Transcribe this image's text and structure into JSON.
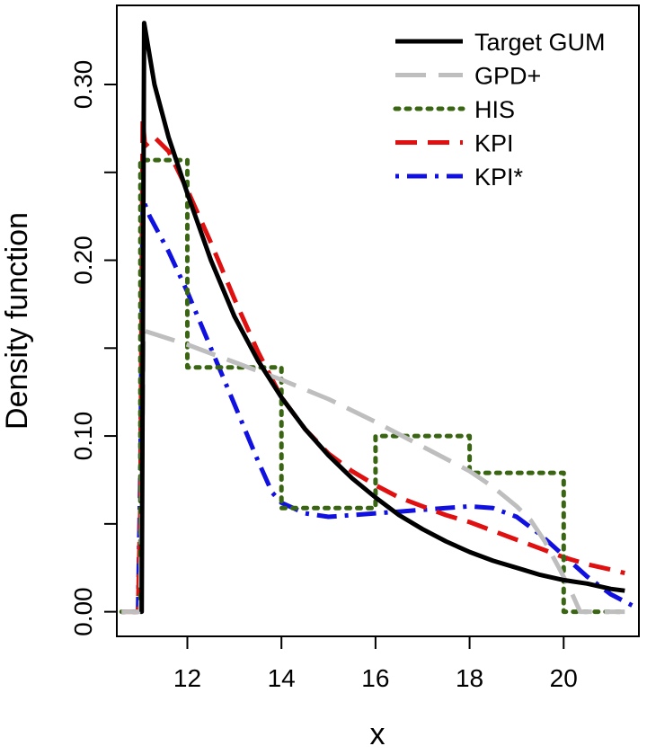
{
  "chart_data": {
    "type": "line",
    "title": "",
    "xlabel": "x",
    "ylabel": "Density function",
    "xlim": [
      10.5,
      21.6
    ],
    "ylim": [
      -0.014,
      0.345
    ],
    "xticks": [
      12,
      14,
      16,
      18,
      20
    ],
    "xtick_labels": [
      "12",
      "14",
      "16",
      "18",
      "20"
    ],
    "yticks": [
      0.0,
      0.05,
      0.1,
      0.15,
      0.2,
      0.25,
      0.3
    ],
    "ytick_labels": [
      "0.00",
      "",
      "0.10",
      "",
      "0.20",
      "",
      "0.30"
    ],
    "grid": false,
    "legend_position": "top-right",
    "series": [
      {
        "name": "Target GUM",
        "color": "#000000",
        "style": "solid",
        "points": [
          [
            11.0,
            0.0
          ],
          [
            11.03,
            0.0
          ],
          [
            11.08,
            0.335
          ],
          [
            11.3,
            0.3
          ],
          [
            11.6,
            0.27
          ],
          [
            12.0,
            0.238
          ],
          [
            12.5,
            0.2
          ],
          [
            13.0,
            0.168
          ],
          [
            13.5,
            0.143
          ],
          [
            14.0,
            0.122
          ],
          [
            14.5,
            0.104
          ],
          [
            15.0,
            0.089
          ],
          [
            15.5,
            0.076
          ],
          [
            16.0,
            0.065
          ],
          [
            16.5,
            0.055
          ],
          [
            17.0,
            0.047
          ],
          [
            17.5,
            0.04
          ],
          [
            18.0,
            0.034
          ],
          [
            18.5,
            0.029
          ],
          [
            19.0,
            0.025
          ],
          [
            19.5,
            0.021
          ],
          [
            20.0,
            0.018
          ],
          [
            20.5,
            0.016
          ],
          [
            21.0,
            0.013
          ],
          [
            21.3,
            0.012
          ]
        ]
      },
      {
        "name": "GPD+",
        "color": "#bebebe",
        "style": "longdash",
        "points": [
          [
            10.6,
            0.0
          ],
          [
            11.0,
            0.0
          ],
          [
            11.07,
            0.16
          ],
          [
            12.0,
            0.152
          ],
          [
            13.0,
            0.142
          ],
          [
            14.0,
            0.132
          ],
          [
            15.0,
            0.121
          ],
          [
            16.0,
            0.108
          ],
          [
            17.0,
            0.094
          ],
          [
            18.0,
            0.08
          ],
          [
            18.5,
            0.071
          ],
          [
            19.0,
            0.06
          ],
          [
            19.3,
            0.052
          ],
          [
            19.6,
            0.04
          ],
          [
            19.9,
            0.025
          ],
          [
            20.15,
            0.012
          ],
          [
            20.35,
            0.0
          ],
          [
            21.3,
            0.0
          ]
        ]
      },
      {
        "name": "HIS",
        "color": "#3a6614",
        "style": "dotted",
        "points": [
          [
            10.6,
            0.0
          ],
          [
            11.0,
            0.0
          ],
          [
            11.0,
            0.257
          ],
          [
            12.0,
            0.257
          ],
          [
            12.0,
            0.139
          ],
          [
            14.0,
            0.139
          ],
          [
            14.0,
            0.059
          ],
          [
            16.0,
            0.059
          ],
          [
            16.0,
            0.1
          ],
          [
            18.0,
            0.1
          ],
          [
            18.0,
            0.079
          ],
          [
            20.0,
            0.079
          ],
          [
            20.0,
            0.0
          ],
          [
            21.3,
            0.0
          ]
        ]
      },
      {
        "name": "KPI",
        "color": "#e01010",
        "style": "dashed",
        "points": [
          [
            10.6,
            0.0
          ],
          [
            10.95,
            0.0
          ],
          [
            11.0,
            0.06
          ],
          [
            11.05,
            0.28
          ],
          [
            11.1,
            0.265
          ],
          [
            11.3,
            0.27
          ],
          [
            11.6,
            0.262
          ],
          [
            12.0,
            0.24
          ],
          [
            12.5,
            0.21
          ],
          [
            13.0,
            0.178
          ],
          [
            13.5,
            0.148
          ],
          [
            14.0,
            0.122
          ],
          [
            14.5,
            0.104
          ],
          [
            15.0,
            0.09
          ],
          [
            15.5,
            0.08
          ],
          [
            16.0,
            0.072
          ],
          [
            16.5,
            0.065
          ],
          [
            17.0,
            0.06
          ],
          [
            17.5,
            0.055
          ],
          [
            18.0,
            0.051
          ],
          [
            18.5,
            0.046
          ],
          [
            19.0,
            0.041
          ],
          [
            19.5,
            0.036
          ],
          [
            20.0,
            0.031
          ],
          [
            20.5,
            0.027
          ],
          [
            21.0,
            0.024
          ],
          [
            21.3,
            0.022
          ]
        ]
      },
      {
        "name": "KPI*",
        "color": "#1010e0",
        "style": "dotdash",
        "points": [
          [
            10.6,
            0.0
          ],
          [
            10.95,
            0.0
          ],
          [
            11.0,
            0.08
          ],
          [
            11.05,
            0.235
          ],
          [
            11.2,
            0.225
          ],
          [
            11.6,
            0.205
          ],
          [
            12.0,
            0.182
          ],
          [
            12.5,
            0.15
          ],
          [
            13.0,
            0.118
          ],
          [
            13.5,
            0.086
          ],
          [
            13.8,
            0.068
          ],
          [
            14.0,
            0.062
          ],
          [
            14.5,
            0.056
          ],
          [
            15.0,
            0.054
          ],
          [
            15.5,
            0.055
          ],
          [
            16.0,
            0.056
          ],
          [
            16.5,
            0.057
          ],
          [
            17.0,
            0.058
          ],
          [
            17.5,
            0.059
          ],
          [
            18.0,
            0.06
          ],
          [
            18.5,
            0.059
          ],
          [
            19.0,
            0.054
          ],
          [
            19.5,
            0.044
          ],
          [
            20.0,
            0.032
          ],
          [
            20.5,
            0.02
          ],
          [
            21.0,
            0.01
          ],
          [
            21.5,
            0.003
          ]
        ]
      }
    ]
  }
}
